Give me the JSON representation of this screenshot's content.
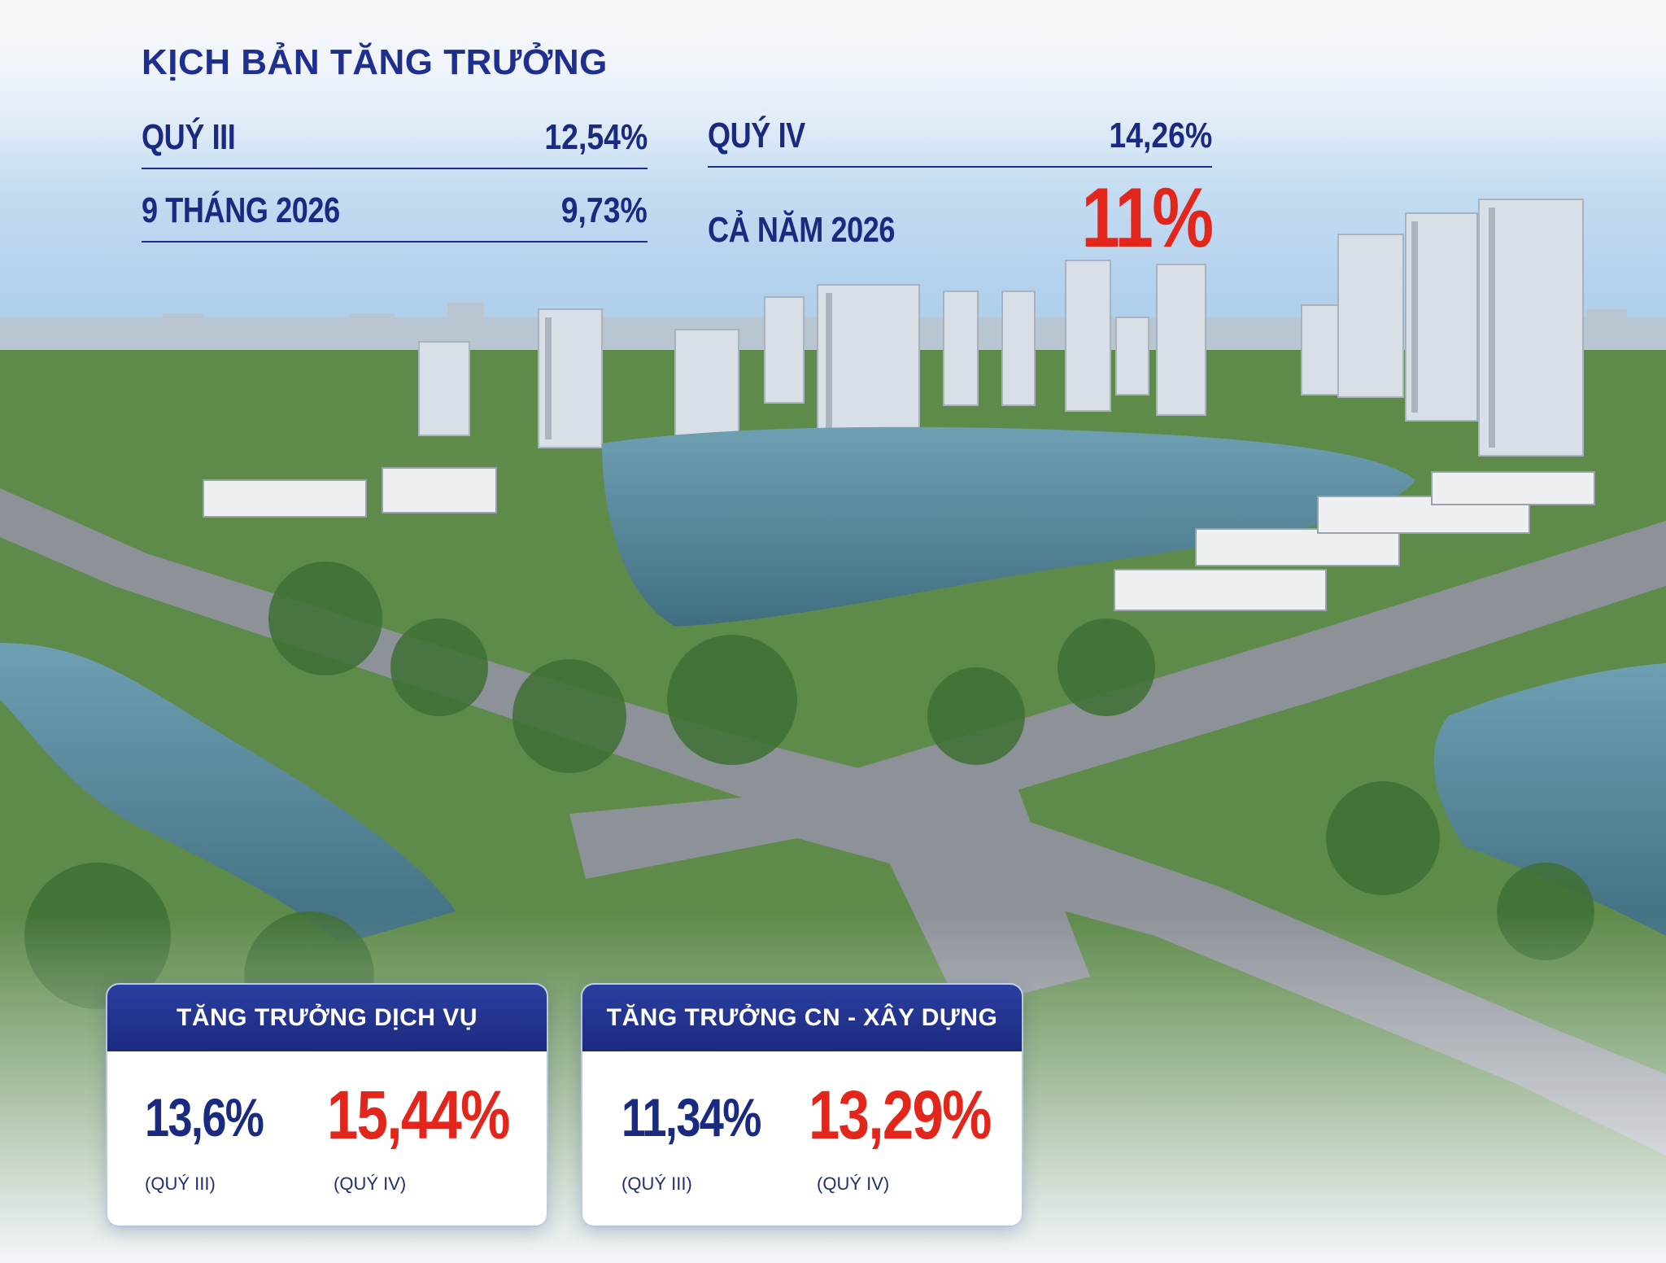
{
  "header": {
    "title": "KỊCH BẢN TĂNG TRƯỞNG"
  },
  "scenario": {
    "q3": {
      "label": "QUÝ III",
      "value": "12,54%"
    },
    "q4": {
      "label": "QUÝ IV",
      "value": "14,26%"
    },
    "nine_months": {
      "label": "9 THÁNG 2026",
      "value": "9,73%"
    },
    "full_year": {
      "label": "CẢ NĂM 2026",
      "value": "11%"
    }
  },
  "cards": {
    "services": {
      "title": "TĂNG TRƯỞNG DỊCH VỤ",
      "q3_value": "13,6%",
      "q3_note": "(QUÝ III)",
      "q4_value": "15,44%",
      "q4_note": "(QUÝ IV)"
    },
    "industry": {
      "title": "TĂNG TRƯỞNG CN - XÂY DỰNG",
      "q3_value": "11,34%",
      "q3_note": "(QUÝ III)",
      "q4_value": "13,29%",
      "q4_note": "(QUÝ IV)"
    }
  },
  "colors": {
    "navy": "#1a2a80",
    "red": "#e3261c",
    "header_blue": "#2b3fa0"
  }
}
